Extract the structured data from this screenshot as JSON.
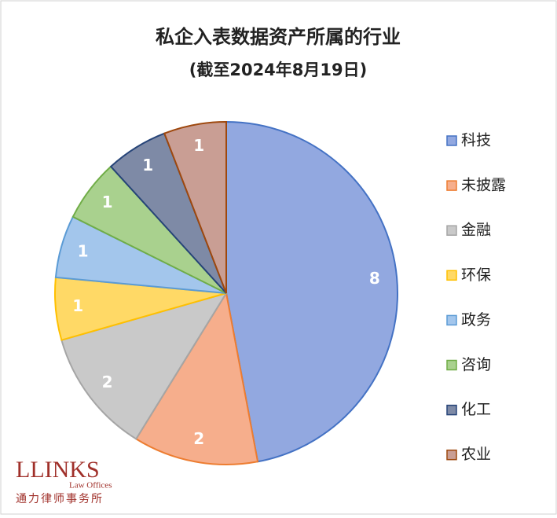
{
  "chart_data": {
    "type": "pie",
    "title": "私企入表数据资产所属的行业",
    "subtitle": "(截至2024年8月19日)",
    "categories": [
      "科技",
      "未披露",
      "金融",
      "环保",
      "政务",
      "咨询",
      "化工",
      "农业"
    ],
    "values": [
      8,
      2,
      2,
      1,
      1,
      1,
      1,
      1
    ],
    "colors": [
      "#92a8e0",
      "#f6ae8c",
      "#c9c9c9",
      "#ffd966",
      "#a3c6ec",
      "#a9d18e",
      "#7e8aa6",
      "#c99e94"
    ],
    "edge_colors": [
      "#4472c4",
      "#ed7d31",
      "#a5a5a5",
      "#ffc000",
      "#5b9bd5",
      "#70ad47",
      "#264478",
      "#9e480e"
    ],
    "legend": "right"
  },
  "logo": {
    "name": "LLINKS",
    "subtitle": "Law Offices",
    "chinese": "通力律师事务所"
  }
}
